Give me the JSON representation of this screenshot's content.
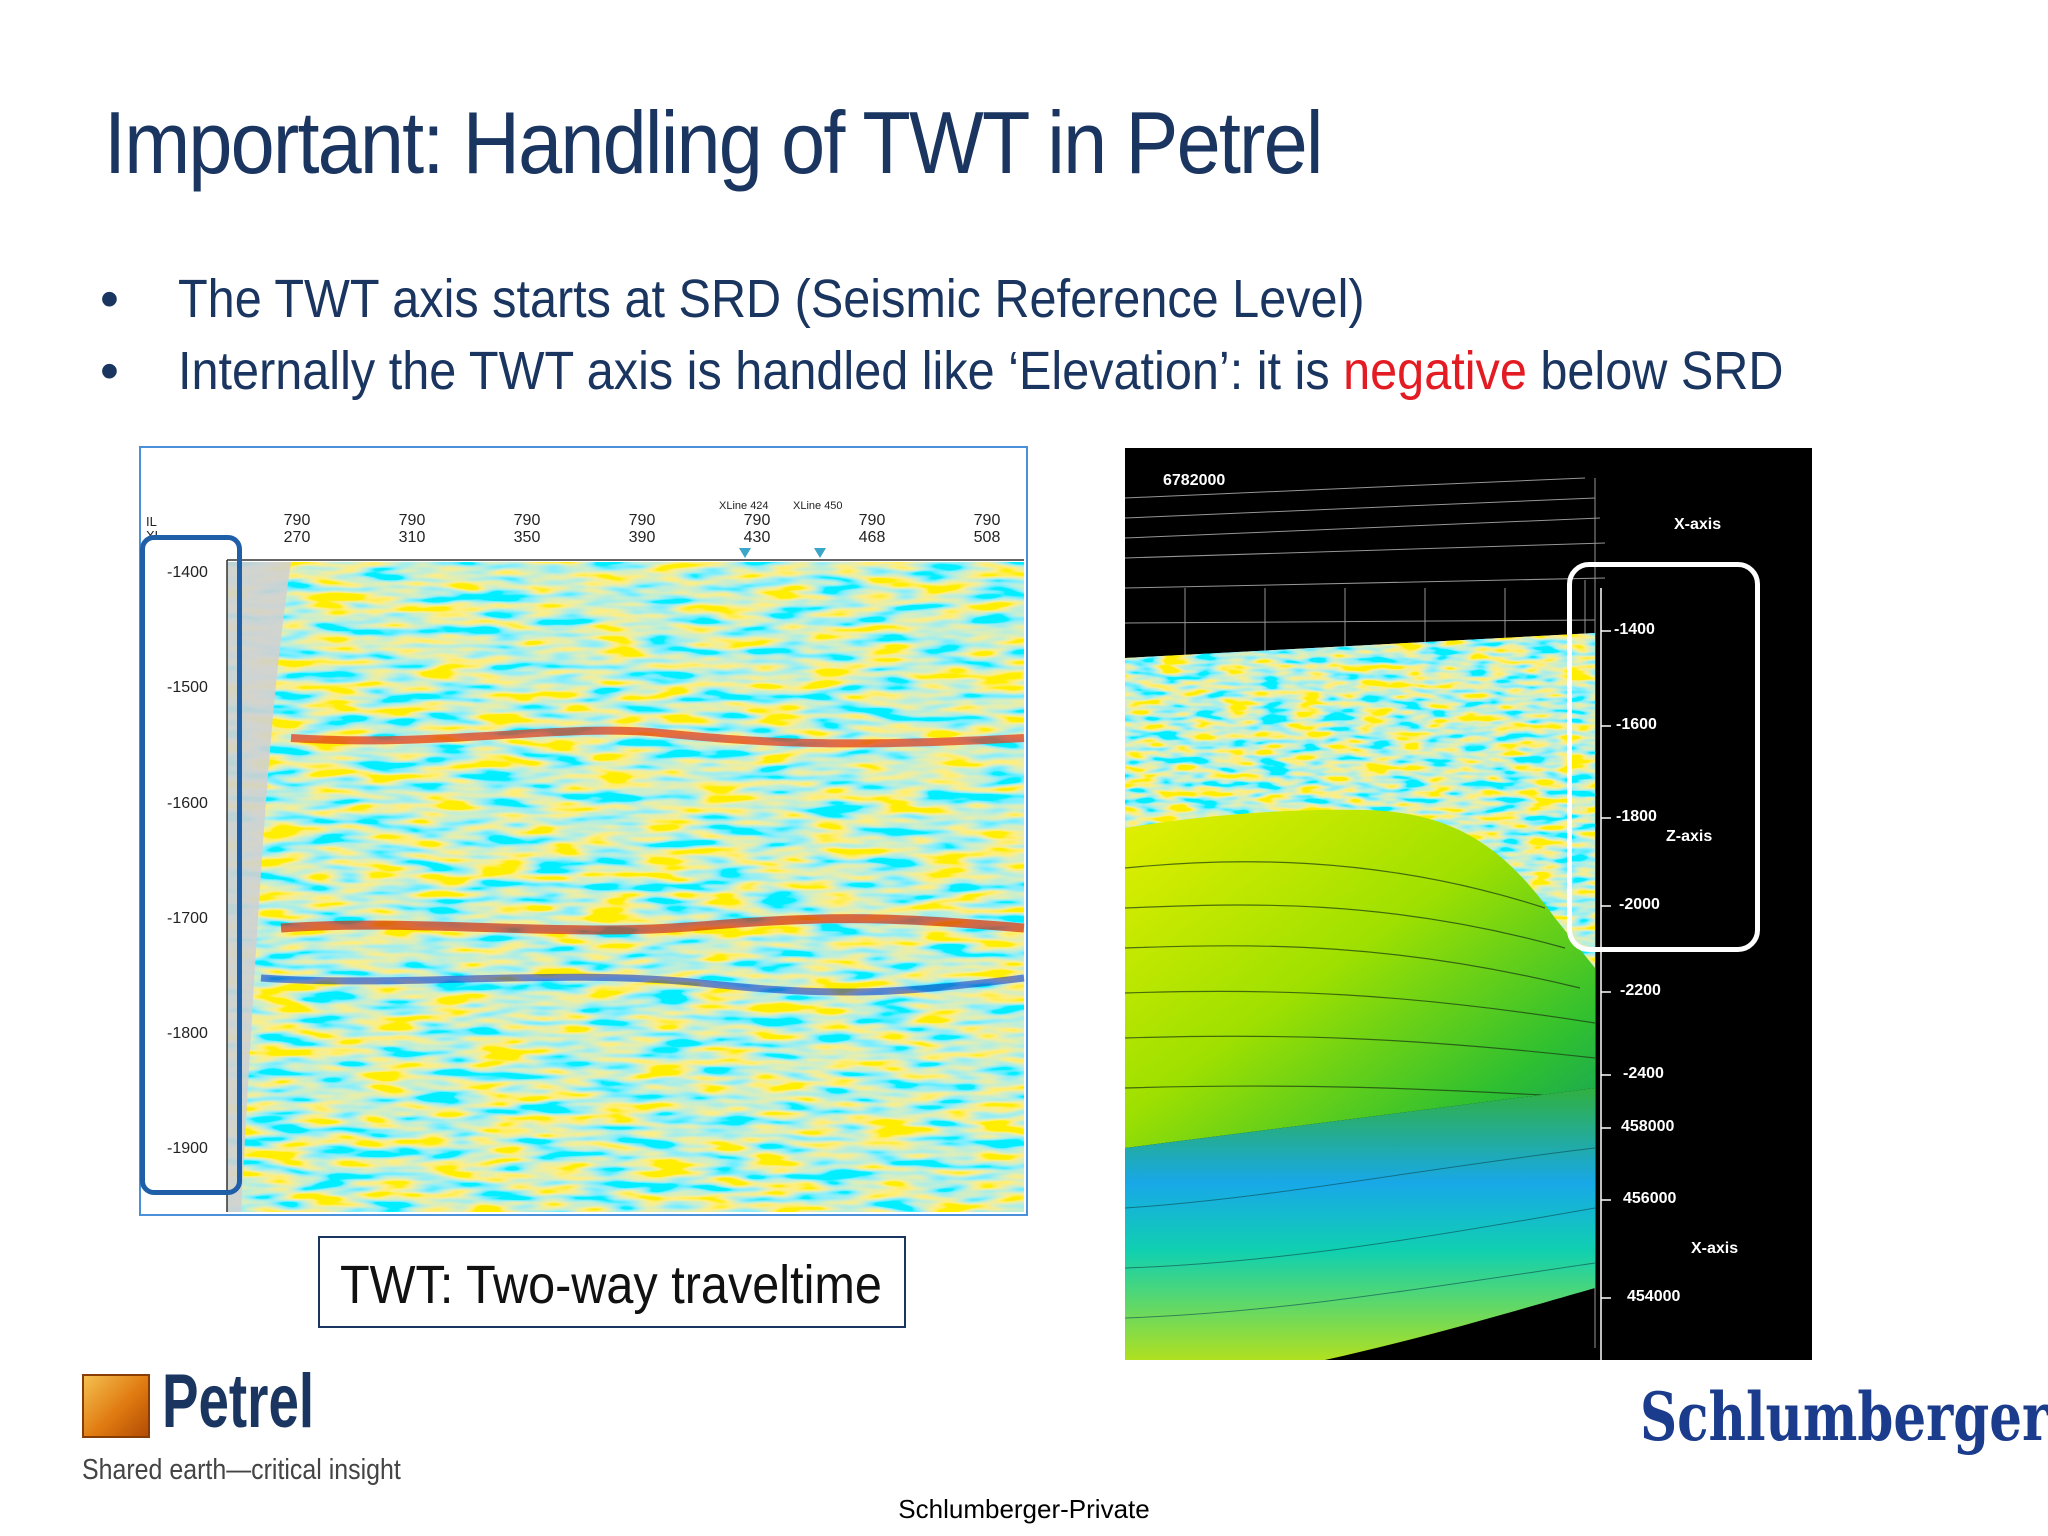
{
  "slide": {
    "title": "Important: Handling of TWT in Petrel",
    "bullets": [
      {
        "dot": "•",
        "text": "The TWT axis starts at SRD (Seismic Reference Level)"
      },
      {
        "dot": "•",
        "pre": "Internally the TWT axis is handled like ‘Elevation’: it is ",
        "highlight": "negative",
        "post": " below SRD"
      }
    ],
    "caption": "TWT: Two-way traveltime",
    "footer": "Schlumberger-Private",
    "colors": {
      "title": "#1a3560",
      "highlight": "#e31b23",
      "box_blue": "#1f5fa8"
    }
  },
  "seismic_section": {
    "corner_labels": [
      "IL",
      "XL"
    ],
    "columns": [
      {
        "il": "790",
        "xl": "270"
      },
      {
        "il": "790",
        "xl": "310"
      },
      {
        "il": "790",
        "xl": "350"
      },
      {
        "il": "790",
        "xl": "390"
      },
      {
        "il": "790",
        "xl": "430"
      },
      {
        "il": "790",
        "xl": "468"
      },
      {
        "il": "790",
        "xl": "508"
      }
    ],
    "markers": [
      "XLine 424",
      "XLine 450"
    ],
    "twt_ticks": [
      "-1400",
      "-1500",
      "-1600",
      "-1700",
      "-1800",
      "-1900"
    ]
  },
  "view3d": {
    "top_label": "6782000",
    "x_axis_label": "X-axis",
    "z_axis_label": "Z-axis",
    "z_ticks": [
      "-1400",
      "-1600",
      "-1800",
      "-2000",
      "-2200",
      "-2400"
    ],
    "x_ticks": [
      "458000",
      "456000",
      "454000"
    ],
    "x_axis_label_2": "X-axis"
  },
  "logos": {
    "petrel_name": "Petrel",
    "petrel_tagline": "Shared earth—critical insight",
    "company": "Schlumberger"
  }
}
